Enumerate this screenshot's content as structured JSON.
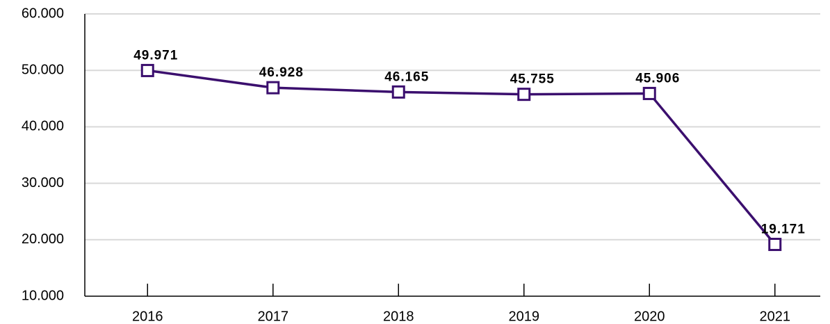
{
  "chart_data": {
    "type": "line",
    "categories": [
      "2016",
      "2017",
      "2018",
      "2019",
      "2020",
      "2021"
    ],
    "series": [
      {
        "color": "#3b0f6e",
        "values": [
          49971,
          46928,
          46165,
          45755,
          45906,
          19171
        ],
        "value_labels": [
          "49.971",
          "46.928",
          "46.165",
          "45.755",
          "45.906",
          "19.171"
        ]
      }
    ],
    "ylim": [
      10000,
      60000
    ],
    "yticks": [
      {
        "value": 10000,
        "label": "10.000"
      },
      {
        "value": 20000,
        "label": "20.000"
      },
      {
        "value": 30000,
        "label": "30.000"
      },
      {
        "value": 40000,
        "label": "40.000"
      },
      {
        "value": 50000,
        "label": "50.000"
      },
      {
        "value": 60000,
        "label": "60.000"
      }
    ],
    "grid": true
  }
}
